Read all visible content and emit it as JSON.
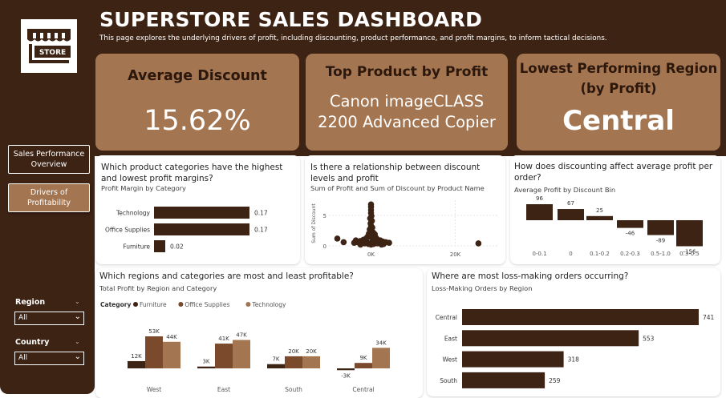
{
  "header": {
    "title": "SUPERSTORE SALES DASHBOARD",
    "subtitle": "This page explores the underlying drivers of profit, including discounting, product performance, and profit margins, to inform tactical decisions.",
    "logo_text": "STORE"
  },
  "colors": {
    "dark_brown": "#3d2314",
    "medium_brown": "#7b4a2c",
    "light_brown": "#a47551",
    "kpi_bg": "#a47551"
  },
  "sidebar": {
    "nav": [
      {
        "label": "Sales Performance Overview"
      },
      {
        "label": "Drivers of Profitability"
      }
    ],
    "filters": {
      "region_label": "Region",
      "region_value": "All",
      "country_label": "Country",
      "country_value": "All"
    }
  },
  "kpis": {
    "avg_discount": {
      "title": "Average Discount",
      "value": "15.62%"
    },
    "top_product": {
      "title": "Top Product by Profit",
      "value_line1": "Canon imageCLASS",
      "value_line2": "2200 Advanced Copier"
    },
    "lowest_region": {
      "title_line1": "Lowest Performing Region",
      "title_line2": "(by Profit)",
      "value": "Central"
    }
  },
  "cards": {
    "margins": {
      "title_line1": "Which product categories have the highest",
      "title_line2": "and lowest profit margins?",
      "subtitle": "Profit Margin by Category"
    },
    "scatter": {
      "title_line1": "Is there a relationship between discount",
      "title_line2": "levels and profit",
      "subtitle": "Sum of Profit and Sum of Discount by Product Name"
    },
    "discount_bins": {
      "title_line1": "How does discounting affect average profit per",
      "title_line2": "order?",
      "subtitle": "Average Profit by Discount Bin"
    },
    "region_category": {
      "title": "Which regions and categories are most and least profitable?",
      "subtitle": "Total Profit by Region and Category",
      "legend_title": "Category"
    },
    "loss_orders": {
      "title": "Where are most loss-making orders occurring?",
      "subtitle": "Loss-Making Orders by Region"
    }
  },
  "chart_data": [
    {
      "id": "margins",
      "type": "bar",
      "orientation": "horizontal",
      "categories": [
        "Technology",
        "Office Supplies",
        "Furniture"
      ],
      "values": [
        0.17,
        0.17,
        0.02
      ],
      "labels": [
        "0.17",
        "0.17",
        "0.02"
      ],
      "max": 0.2
    },
    {
      "id": "scatter",
      "type": "scatter",
      "ylabel": "Sum of Discount",
      "xlim": [
        -10000,
        30000
      ],
      "ylim": [
        0,
        7.5
      ],
      "x_ticks": [
        {
          "v": 0,
          "label": "0K"
        },
        {
          "v": 20000,
          "label": "20K"
        }
      ],
      "y_ticks": [
        {
          "v": 0,
          "label": "0"
        },
        {
          "v": 5,
          "label": "5"
        }
      ],
      "points": [
        [
          0,
          6.8
        ],
        [
          0,
          6.4
        ],
        [
          0,
          5.9
        ],
        [
          0,
          5.4
        ],
        [
          100,
          4.9
        ],
        [
          -200,
          4.5
        ],
        [
          200,
          4.1
        ],
        [
          -100,
          3.7
        ],
        [
          0,
          3.3
        ],
        [
          300,
          3.0
        ],
        [
          -300,
          2.7
        ],
        [
          0,
          2.4
        ],
        [
          500,
          2.2
        ],
        [
          -500,
          2.0
        ],
        [
          0,
          1.8
        ],
        [
          800,
          1.6
        ],
        [
          -800,
          1.5
        ],
        [
          1200,
          1.3
        ],
        [
          -1200,
          1.2
        ],
        [
          1600,
          1.0
        ],
        [
          -1800,
          1.0
        ],
        [
          2200,
          0.9
        ],
        [
          -2500,
          0.8
        ],
        [
          2800,
          0.7
        ],
        [
          -3200,
          0.6
        ],
        [
          3500,
          0.6
        ],
        [
          -4000,
          0.5
        ],
        [
          4300,
          0.5
        ],
        [
          -1500,
          0.4
        ],
        [
          1500,
          0.4
        ],
        [
          -600,
          0.3
        ],
        [
          600,
          0.3
        ],
        [
          0,
          0.2
        ],
        [
          2500,
          0.2
        ],
        [
          -2500,
          0.2
        ],
        [
          -8000,
          1.2
        ],
        [
          -6500,
          0.6
        ],
        [
          25500,
          0.4
        ],
        [
          -200,
          1.5
        ],
        [
          400,
          0.8
        ],
        [
          -900,
          0.6
        ],
        [
          900,
          1.9
        ],
        [
          3000,
          0.3
        ],
        [
          -3600,
          0.9
        ]
      ]
    },
    {
      "id": "discount_bins",
      "type": "bar",
      "orientation": "waterfall",
      "categories": [
        "0-0.1",
        "0",
        "0.1-0.2",
        "0.2-0.3",
        "0.5-1.0",
        "0.3-0.5"
      ],
      "values": [
        96,
        67,
        25,
        -46,
        -89,
        -156
      ],
      "labels": [
        "96",
        "67",
        "25",
        "-46",
        "-89",
        "-156"
      ]
    },
    {
      "id": "region_category",
      "type": "bar",
      "categories": [
        "West",
        "East",
        "South",
        "Central"
      ],
      "series": [
        {
          "name": "Furniture",
          "values": [
            12000,
            3000,
            7000,
            -3000
          ],
          "labels": [
            "12K",
            "3K",
            "7K",
            "-3K"
          ]
        },
        {
          "name": "Office Supplies",
          "values": [
            53000,
            41000,
            20000,
            9000
          ],
          "labels": [
            "53K",
            "41K",
            "20K",
            "9K"
          ]
        },
        {
          "name": "Technology",
          "values": [
            44000,
            47000,
            20000,
            34000
          ],
          "labels": [
            "44K",
            "47K",
            "20K",
            "34K"
          ]
        }
      ],
      "series_colors": [
        "#3d2314",
        "#7b4a2c",
        "#a47551"
      ]
    },
    {
      "id": "loss_orders",
      "type": "bar",
      "orientation": "horizontal",
      "categories": [
        "Central",
        "East",
        "West",
        "South"
      ],
      "values": [
        741,
        553,
        318,
        259
      ],
      "labels": [
        "741",
        "553",
        "318",
        "259"
      ]
    }
  ]
}
